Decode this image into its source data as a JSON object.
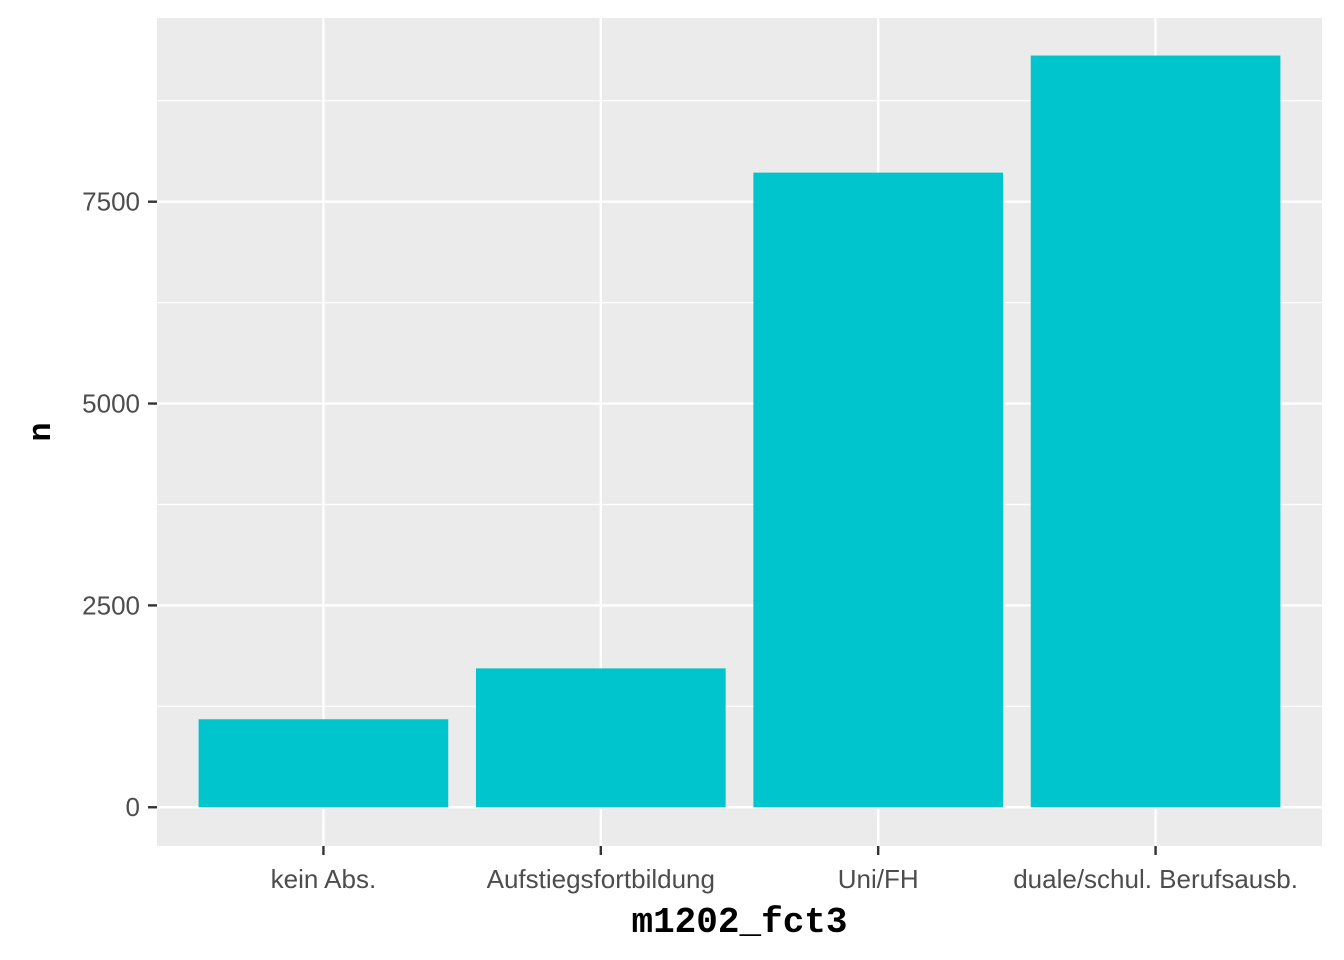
{
  "chart_data": {
    "type": "bar",
    "title": "",
    "xlabel": "m1202_fct3",
    "ylabel": "n",
    "categories": [
      "kein Abs.",
      "Aufstiegsfortbildung",
      "Uni/FH",
      "duale/schul. Berufsausb."
    ],
    "values": [
      1090,
      1720,
      7860,
      9310
    ],
    "ylim": [
      -480,
      9775
    ],
    "yticks": [
      0,
      2500,
      5000,
      7500
    ],
    "ytick_labels": [
      "0",
      "2500",
      "5000",
      "7500"
    ],
    "minor_yticks": [
      1250,
      3750,
      6250,
      8750
    ],
    "grid": true,
    "legend": "none",
    "colors": {
      "bar": "#00C5CD",
      "panel": "#EBEBEB",
      "grid": "#FFFFFF",
      "tick": "#333333"
    }
  }
}
